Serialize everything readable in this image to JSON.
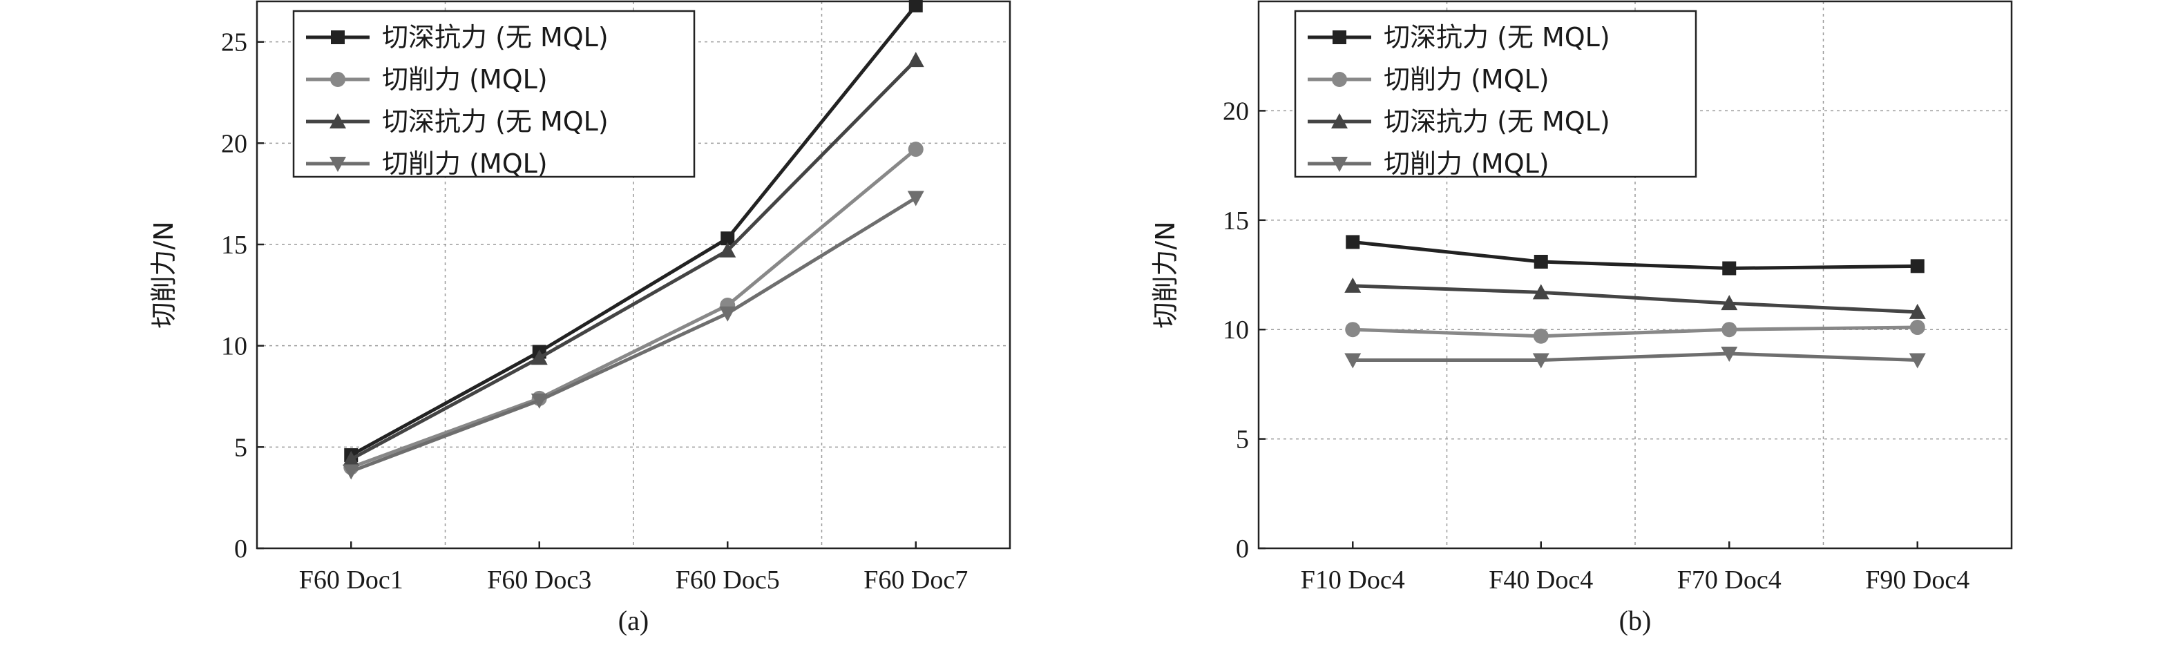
{
  "chart_data": [
    {
      "type": "line",
      "caption": "(a)",
      "ylabel": "切削力/N",
      "xlabel": "",
      "categories": [
        "F60 Doc1",
        "F60 Doc3",
        "F60 Doc5",
        "F60 Doc7"
      ],
      "ylim": [
        0,
        27
      ],
      "yticks": [
        0,
        5,
        10,
        15,
        20,
        25
      ],
      "grid": true,
      "legend_position": "top-left",
      "series": [
        {
          "name": "切深抗力 (无 MQL)",
          "marker": "square",
          "color": "#222222",
          "values": [
            4.6,
            9.7,
            15.3,
            26.8
          ]
        },
        {
          "name": "切削力 (MQL)",
          "marker": "circle",
          "color": "#888888",
          "values": [
            4.0,
            7.4,
            12.0,
            19.7
          ]
        },
        {
          "name": "切深抗力 (无 MQL)",
          "marker": "triangle-up",
          "color": "#444444",
          "values": [
            4.4,
            9.4,
            14.7,
            24.1
          ]
        },
        {
          "name": "切削力 (MQL)",
          "marker": "triangle-down",
          "color": "#6e6e6e",
          "values": [
            3.8,
            7.3,
            11.6,
            17.3
          ]
        }
      ]
    },
    {
      "type": "line",
      "caption": "(b)",
      "ylabel": "切削力/N",
      "xlabel": "",
      "categories": [
        "F10 Doc4",
        "F40 Doc4",
        "F70 Doc4",
        "F90 Doc4"
      ],
      "ylim": [
        0,
        25
      ],
      "yticks": [
        0,
        5,
        10,
        15,
        20
      ],
      "grid": true,
      "legend_position": "top-left",
      "series": [
        {
          "name": "切深抗力 (无 MQL)",
          "marker": "square",
          "color": "#222222",
          "values": [
            14.0,
            13.1,
            12.8,
            12.9
          ]
        },
        {
          "name": "切削力 (MQL)",
          "marker": "circle",
          "color": "#888888",
          "values": [
            10.0,
            9.7,
            10.0,
            10.1
          ]
        },
        {
          "name": "切深抗力 (无 MQL)",
          "marker": "triangle-up",
          "color": "#444444",
          "values": [
            12.0,
            11.7,
            11.2,
            10.8
          ]
        },
        {
          "name": "切削力 (MQL)",
          "marker": "triangle-down",
          "color": "#6e6e6e",
          "values": [
            8.6,
            8.6,
            8.9,
            8.6
          ]
        }
      ]
    }
  ]
}
